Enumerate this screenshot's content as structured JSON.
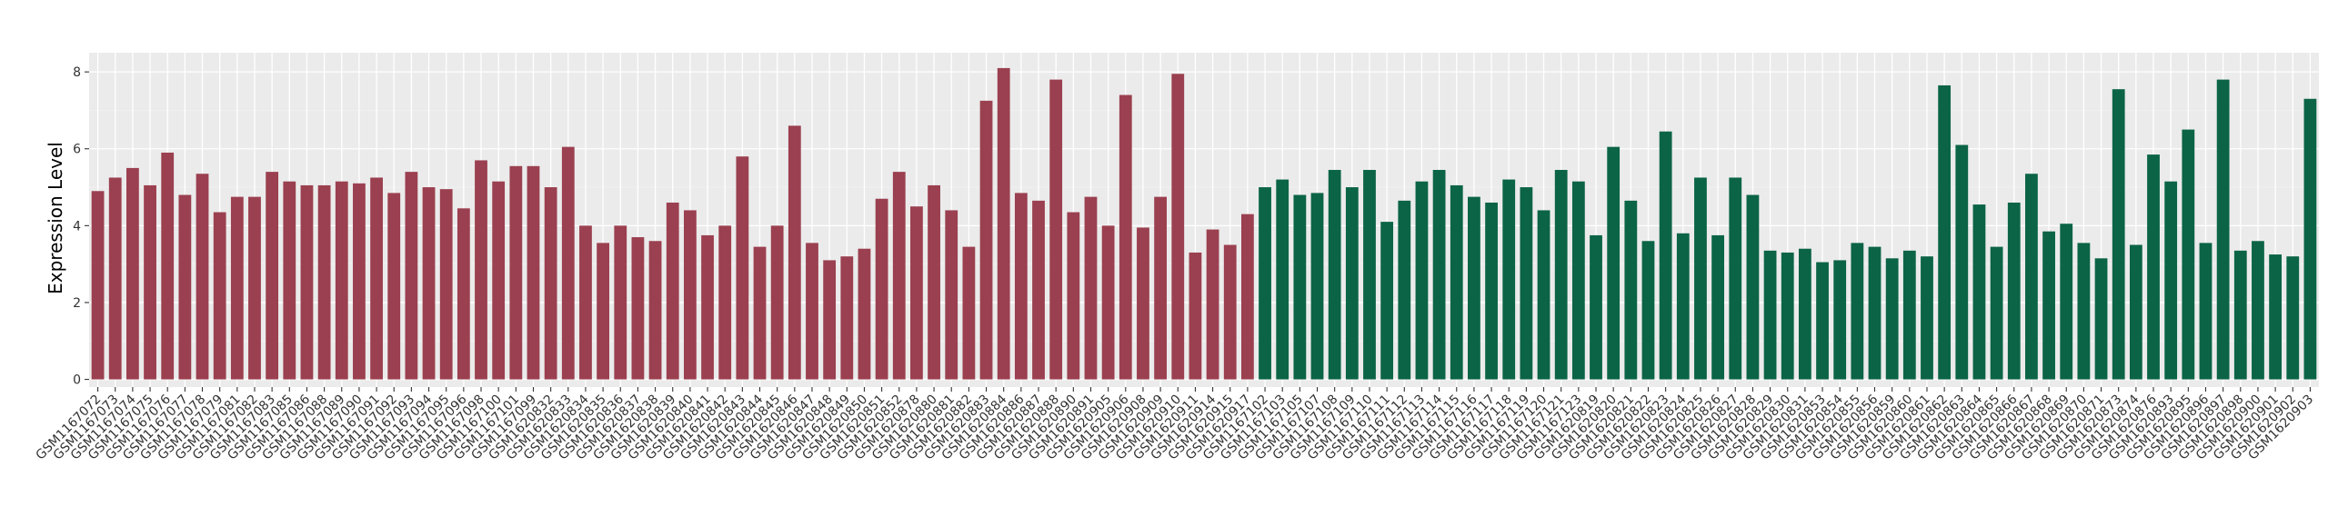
{
  "chart_data": {
    "type": "bar",
    "title": "",
    "xlabel": "",
    "ylabel": "Expression Level",
    "ylim": [
      -0.2,
      8.5
    ],
    "yticks": [
      0,
      2,
      4,
      6,
      8
    ],
    "grid": true,
    "legend": "none",
    "colors": {
      "panel": "#EBEBEB",
      "grid_major": "#FFFFFF",
      "grid_minor": "#F5F5F5"
    },
    "series": [
      {
        "color": "#9B4050",
        "categories": [
          "GSM1167072",
          "GSM1167073",
          "GSM1167074",
          "GSM1167075",
          "GSM1167076",
          "GSM1167077",
          "GSM1167078",
          "GSM1167079",
          "GSM1167081",
          "GSM1167082",
          "GSM1167083",
          "GSM1167085",
          "GSM1167086",
          "GSM1167088",
          "GSM1167089",
          "GSM1167090",
          "GSM1167091",
          "GSM1167092",
          "GSM1167093",
          "GSM1167094",
          "GSM1167095",
          "GSM1167096",
          "GSM1167098",
          "GSM1167100",
          "GSM1167101",
          "GSM1167099",
          "GSM1620832",
          "GSM1620833",
          "GSM1620834",
          "GSM1620835",
          "GSM1620836",
          "GSM1620837",
          "GSM1620838",
          "GSM1620839",
          "GSM1620840",
          "GSM1620841",
          "GSM1620842",
          "GSM1620843",
          "GSM1620844",
          "GSM1620845",
          "GSM1620846",
          "GSM1620847",
          "GSM1620848",
          "GSM1620849",
          "GSM1620850",
          "GSM1620851",
          "GSM1620852",
          "GSM1620878",
          "GSM1620880",
          "GSM1620881",
          "GSM1620882",
          "GSM1620883",
          "GSM1620884",
          "GSM1620886",
          "GSM1620887",
          "GSM1620888",
          "GSM1620890",
          "GSM1620891",
          "GSM1620905",
          "GSM1620906",
          "GSM1620908",
          "GSM1620909",
          "GSM1620910",
          "GSM1620911",
          "GSM1620914",
          "GSM1620915",
          "GSM1620917"
        ],
        "values": [
          4.9,
          5.25,
          5.5,
          5.05,
          5.9,
          4.8,
          5.35,
          4.35,
          4.75,
          4.75,
          5.4,
          5.15,
          5.05,
          5.05,
          5.15,
          5.1,
          5.25,
          4.85,
          5.4,
          5.0,
          4.95,
          4.45,
          5.7,
          5.15,
          5.55,
          5.55,
          5.0,
          6.05,
          4.0,
          3.55,
          4.0,
          3.7,
          3.6,
          4.6,
          4.4,
          3.75,
          4.0,
          5.8,
          3.45,
          4.0,
          6.6,
          3.55,
          3.1,
          3.2,
          3.4,
          4.7,
          5.4,
          4.5,
          5.05,
          4.4,
          3.45,
          7.25,
          8.1,
          4.85,
          4.65,
          7.8,
          4.35,
          4.75,
          4.0,
          7.4,
          3.95,
          4.75,
          7.95,
          3.3,
          3.9,
          3.5,
          4.3
        ]
      },
      {
        "color": "#0B6446",
        "categories": [
          "GSM1167102",
          "GSM1167103",
          "GSM1167105",
          "GSM1167107",
          "GSM1167108",
          "GSM1167109",
          "GSM1167110",
          "GSM1167111",
          "GSM1167112",
          "GSM1167113",
          "GSM1167114",
          "GSM1167115",
          "GSM1167116",
          "GSM1167117",
          "GSM1167118",
          "GSM1167119",
          "GSM1167120",
          "GSM1167121",
          "GSM1167123",
          "GSM1620819",
          "GSM1620820",
          "GSM1620821",
          "GSM1620822",
          "GSM1620823",
          "GSM1620824",
          "GSM1620825",
          "GSM1620826",
          "GSM1620827",
          "GSM1620828",
          "GSM1620829",
          "GSM1620830",
          "GSM1620831",
          "GSM1620853",
          "GSM1620854",
          "GSM1620855",
          "GSM1620856",
          "GSM1620859",
          "GSM1620860",
          "GSM1620861",
          "GSM1620862",
          "GSM1620863",
          "GSM1620864",
          "GSM1620865",
          "GSM1620866",
          "GSM1620867",
          "GSM1620868",
          "GSM1620869",
          "GSM1620870",
          "GSM1620871",
          "GSM1620873",
          "GSM1620874",
          "GSM1620876",
          "GSM1620893",
          "GSM1620895",
          "GSM1620896",
          "GSM1620897",
          "GSM1620898",
          "GSM1620900",
          "GSM1620901",
          "GSM1620902",
          "GSM1620903"
        ],
        "values": [
          5.0,
          5.2,
          4.8,
          4.85,
          5.45,
          5.0,
          5.45,
          4.1,
          4.65,
          5.15,
          5.45,
          5.05,
          4.75,
          4.6,
          5.2,
          5.0,
          4.4,
          5.45,
          5.15,
          3.75,
          6.05,
          4.65,
          3.6,
          6.45,
          3.8,
          5.25,
          3.75,
          5.25,
          4.8,
          3.35,
          3.3,
          3.4,
          3.05,
          3.1,
          3.55,
          3.45,
          3.15,
          3.35,
          3.2,
          7.65,
          6.1,
          4.55,
          3.45,
          4.6,
          5.35,
          3.85,
          4.05,
          3.55,
          3.15,
          7.55,
          3.5,
          5.85,
          5.15,
          6.5,
          3.55,
          7.8,
          3.35,
          3.6,
          3.25,
          3.2,
          7.3
        ]
      }
    ]
  }
}
